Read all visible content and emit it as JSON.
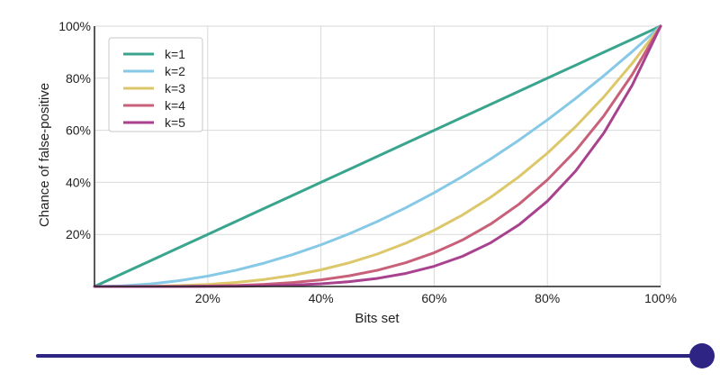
{
  "chart_data": {
    "type": "line",
    "title": "",
    "xlabel": "Bits set",
    "ylabel": "Chance of false-positive",
    "xlim": [
      0,
      1
    ],
    "ylim": [
      0,
      1
    ],
    "x_ticks": [
      {
        "value": 0.2,
        "label": "20%"
      },
      {
        "value": 0.4,
        "label": "40%"
      },
      {
        "value": 0.6,
        "label": "60%"
      },
      {
        "value": 0.8,
        "label": "80%"
      },
      {
        "value": 1.0,
        "label": "100%"
      }
    ],
    "y_ticks": [
      {
        "value": 0.2,
        "label": "20%"
      },
      {
        "value": 0.4,
        "label": "40%"
      },
      {
        "value": 0.6,
        "label": "60%"
      },
      {
        "value": 0.8,
        "label": "80%"
      },
      {
        "value": 1.0,
        "label": "100%"
      }
    ],
    "grid": true,
    "legend_position": "top-left",
    "x": [
      0,
      0.05,
      0.1,
      0.15,
      0.2,
      0.25,
      0.3,
      0.35,
      0.4,
      0.45,
      0.5,
      0.55,
      0.6,
      0.65,
      0.7,
      0.75,
      0.8,
      0.85,
      0.9,
      0.95,
      1.0
    ],
    "series": [
      {
        "name": "k=1",
        "color": "#3aa58e",
        "values": [
          0,
          0.05,
          0.1,
          0.15,
          0.2,
          0.25,
          0.3,
          0.35,
          0.4,
          0.45,
          0.5,
          0.55,
          0.6,
          0.65,
          0.7,
          0.75,
          0.8,
          0.85,
          0.9,
          0.95,
          1.0
        ]
      },
      {
        "name": "k=2",
        "color": "#86c9e6",
        "values": [
          0,
          0.0025,
          0.01,
          0.0225,
          0.04,
          0.0625,
          0.09,
          0.1225,
          0.16,
          0.2025,
          0.25,
          0.3025,
          0.36,
          0.4225,
          0.49,
          0.5625,
          0.64,
          0.7225,
          0.81,
          0.9025,
          1.0
        ]
      },
      {
        "name": "k=3",
        "color": "#dcc76a",
        "values": [
          0,
          0.0001,
          0.001,
          0.0034,
          0.008,
          0.0156,
          0.027,
          0.0429,
          0.064,
          0.0911,
          0.125,
          0.1664,
          0.216,
          0.2746,
          0.343,
          0.4219,
          0.512,
          0.6141,
          0.729,
          0.8574,
          1.0
        ]
      },
      {
        "name": "k=4",
        "color": "#c9607a",
        "values": [
          0,
          0,
          0.0001,
          0.0005,
          0.0016,
          0.0039,
          0.0081,
          0.015,
          0.0256,
          0.041,
          0.0625,
          0.0915,
          0.1296,
          0.1785,
          0.2401,
          0.3164,
          0.4096,
          0.522,
          0.6561,
          0.8145,
          1.0
        ]
      },
      {
        "name": "k=5",
        "color": "#a8428f",
        "values": [
          0,
          0,
          0,
          0.0001,
          0.0003,
          0.001,
          0.0024,
          0.0053,
          0.0102,
          0.0185,
          0.0313,
          0.0503,
          0.0778,
          0.116,
          0.1681,
          0.2373,
          0.3277,
          0.4437,
          0.5905,
          0.7738,
          1.0
        ]
      }
    ]
  },
  "slider": {
    "value": 1.0,
    "color": "#2e2484"
  }
}
